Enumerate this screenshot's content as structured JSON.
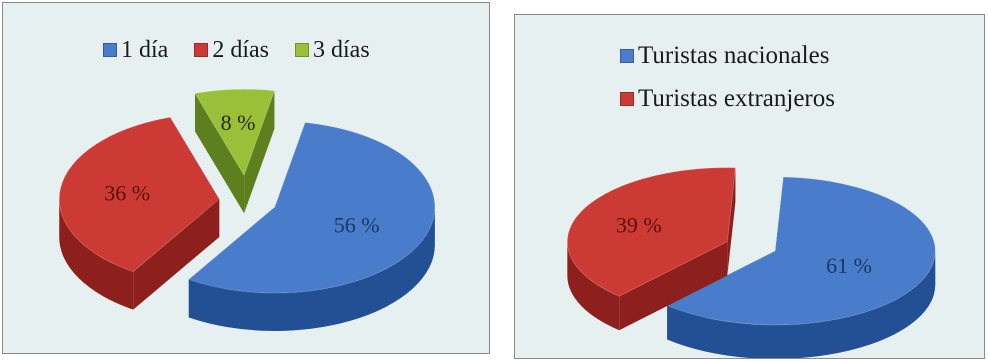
{
  "colors": {
    "blue_top": "#4a7ccc",
    "blue_side": "#234f94",
    "red_top": "#cc3a36",
    "red_side": "#8d1f1c",
    "green_top": "#9ac03a",
    "green_side": "#5e7f1d",
    "panel_bg": "#e6f0f0"
  },
  "chart_data": [
    {
      "type": "pie",
      "title": "",
      "legend_position": "top",
      "series": [
        {
          "name": "1 día",
          "value": 56,
          "label": "56 %",
          "color": "#4a7ccc"
        },
        {
          "name": "2 días",
          "value": 36,
          "label": "36 %",
          "color": "#cc3a36"
        },
        {
          "name": "3 días",
          "value": 8,
          "label": "8 %",
          "color": "#9ac03a"
        }
      ]
    },
    {
      "type": "pie",
      "title": "",
      "legend_position": "top",
      "series": [
        {
          "name": "Turistas nacionales",
          "value": 61,
          "label": "61 %",
          "color": "#4a7ccc"
        },
        {
          "name": "Turistas extranjeros",
          "value": 39,
          "label": "39 %",
          "color": "#cc3a36"
        }
      ]
    }
  ]
}
